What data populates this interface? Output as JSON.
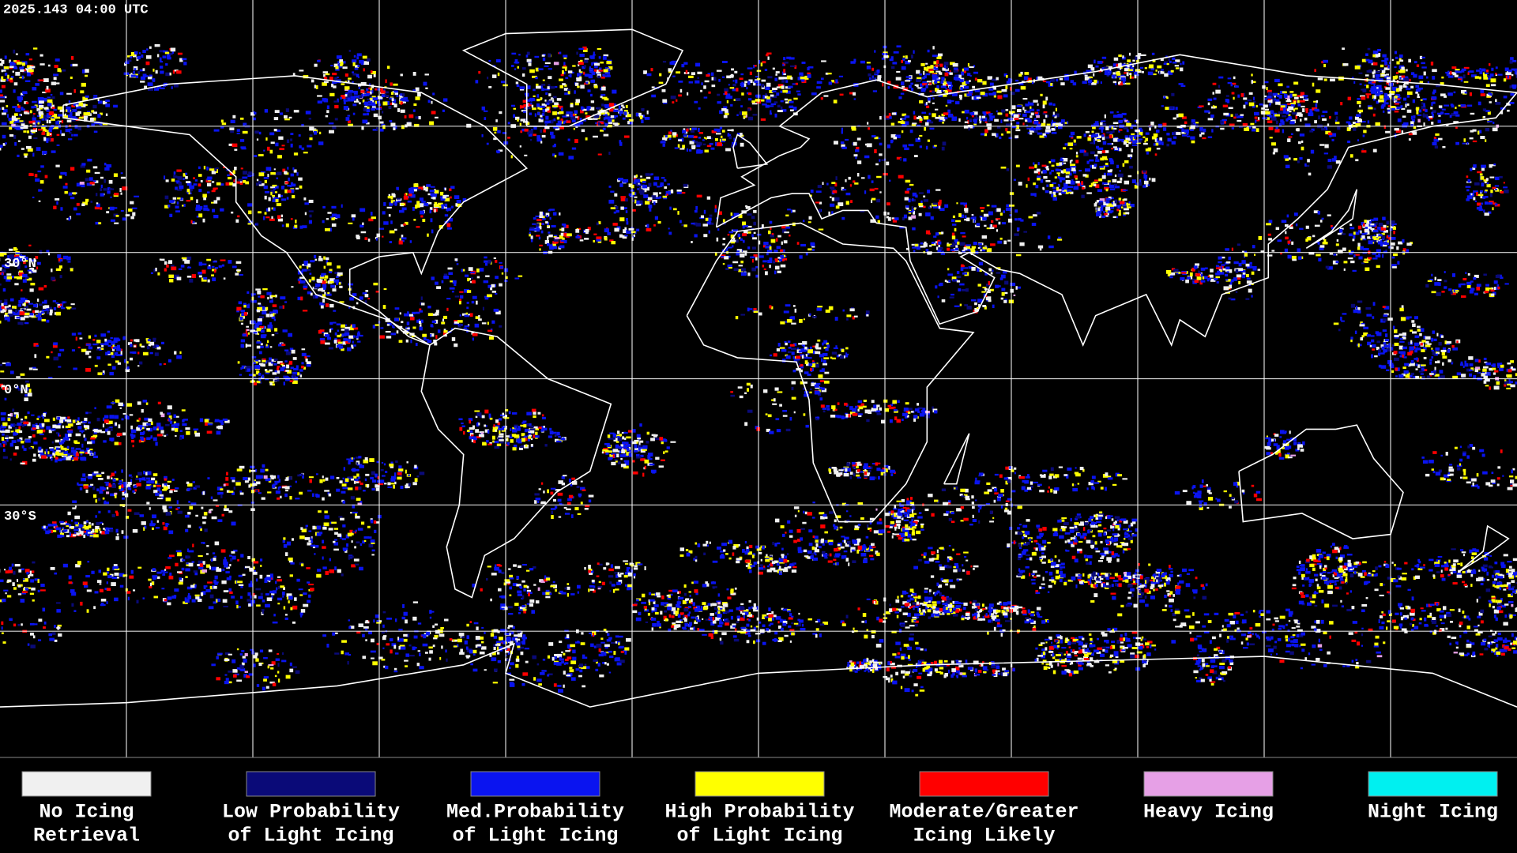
{
  "header": {
    "timestamp": "2025.143 04:00 UTC"
  },
  "map": {
    "latitude_labels": [
      "30°N",
      "0°N",
      "30°S"
    ]
  },
  "legend": {
    "items": [
      {
        "lines": [
          "No Icing",
          "Retrieval"
        ],
        "color": "#f0f0f0"
      },
      {
        "lines": [
          "Low Probability",
          "of Light Icing"
        ],
        "color": "#0a0a78"
      },
      {
        "lines": [
          "Med.Probability",
          "of Light Icing"
        ],
        "color": "#0a14f0"
      },
      {
        "lines": [
          "High Probability",
          "of Light Icing"
        ],
        "color": "#ffff00"
      },
      {
        "lines": [
          "Moderate/Greater",
          "Icing Likely"
        ],
        "color": "#ff0000"
      },
      {
        "lines": [
          "Heavy Icing"
        ],
        "color": "#e6a0e6"
      },
      {
        "lines": [
          "Night Icing"
        ],
        "color": "#00f0f0"
      }
    ]
  }
}
